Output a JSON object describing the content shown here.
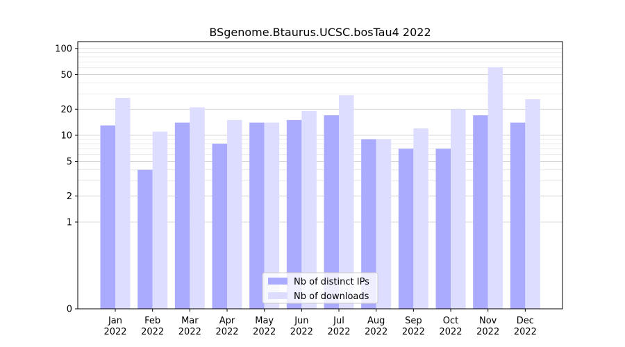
{
  "chart_data": {
    "type": "bar",
    "title": "BSgenome.Btaurus.UCSC.bosTau4 2022",
    "xlabel": "",
    "ylabel": "",
    "yscale": "symlog",
    "ylim": [
      0,
      120
    ],
    "yticks": [
      0,
      1,
      2,
      5,
      10,
      20,
      50,
      100
    ],
    "grid": true,
    "legend_position": "bottom-center",
    "categories": [
      [
        "Jan",
        "2022"
      ],
      [
        "Feb",
        "2022"
      ],
      [
        "Mar",
        "2022"
      ],
      [
        "Apr",
        "2022"
      ],
      [
        "May",
        "2022"
      ],
      [
        "Jun",
        "2022"
      ],
      [
        "Jul",
        "2022"
      ],
      [
        "Aug",
        "2022"
      ],
      [
        "Sep",
        "2022"
      ],
      [
        "Oct",
        "2022"
      ],
      [
        "Nov",
        "2022"
      ],
      [
        "Dec",
        "2022"
      ]
    ],
    "series": [
      {
        "name": "Nb of distinct IPs",
        "color": "#aaaaff",
        "values": [
          13,
          4,
          14,
          8,
          14,
          15,
          17,
          9,
          7,
          7,
          17,
          14
        ]
      },
      {
        "name": "Nb of downloads",
        "color": "#ddddff",
        "values": [
          27,
          11,
          21,
          15,
          14,
          19,
          29,
          9,
          12,
          20,
          61,
          26
        ]
      }
    ]
  }
}
